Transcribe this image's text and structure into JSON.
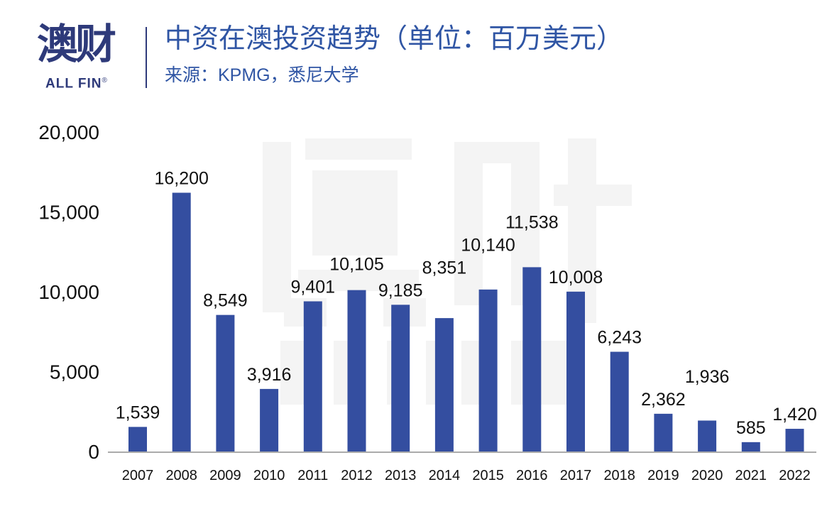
{
  "logo": {
    "cn": "澳财",
    "en": "ALL FIN",
    "mark": "®"
  },
  "header": {
    "title": "中资在澳投资趋势（单位：百万美元）",
    "subtitle": "来源：KPMG，悉尼大学"
  },
  "colors": {
    "bar": "#344ea0",
    "title": "#2f55a4",
    "logo": "#2e3a7a",
    "axis": "#aaaaaa"
  },
  "chart_data": {
    "type": "bar",
    "title": "中资在澳投资趋势（单位：百万美元）",
    "categories": [
      "2007",
      "2008",
      "2009",
      "2010",
      "2011",
      "2012",
      "2013",
      "2014",
      "2015",
      "2016",
      "2017",
      "2018",
      "2019",
      "2020",
      "2021",
      "2022"
    ],
    "values": [
      1539,
      16200,
      8549,
      3916,
      9401,
      10105,
      9185,
      8351,
      10140,
      11538,
      10008,
      6243,
      2362,
      1936,
      585,
      1420
    ],
    "data_labels": [
      "1,539",
      "16,200",
      "8,549",
      "3,916",
      "9,401",
      "10,105",
      "9,185",
      "8,351",
      "10,140",
      "11,538",
      "10,008",
      "6,243",
      "2,362",
      "1,936",
      "585",
      "1,420"
    ],
    "yticks": [
      0,
      5000,
      10000,
      15000,
      20000
    ],
    "ytick_labels": [
      "0",
      "5,000",
      "10,000",
      "15,000",
      "20,000"
    ],
    "ylim": [
      0,
      20000
    ],
    "grid": false,
    "xlabel": "",
    "ylabel": ""
  }
}
